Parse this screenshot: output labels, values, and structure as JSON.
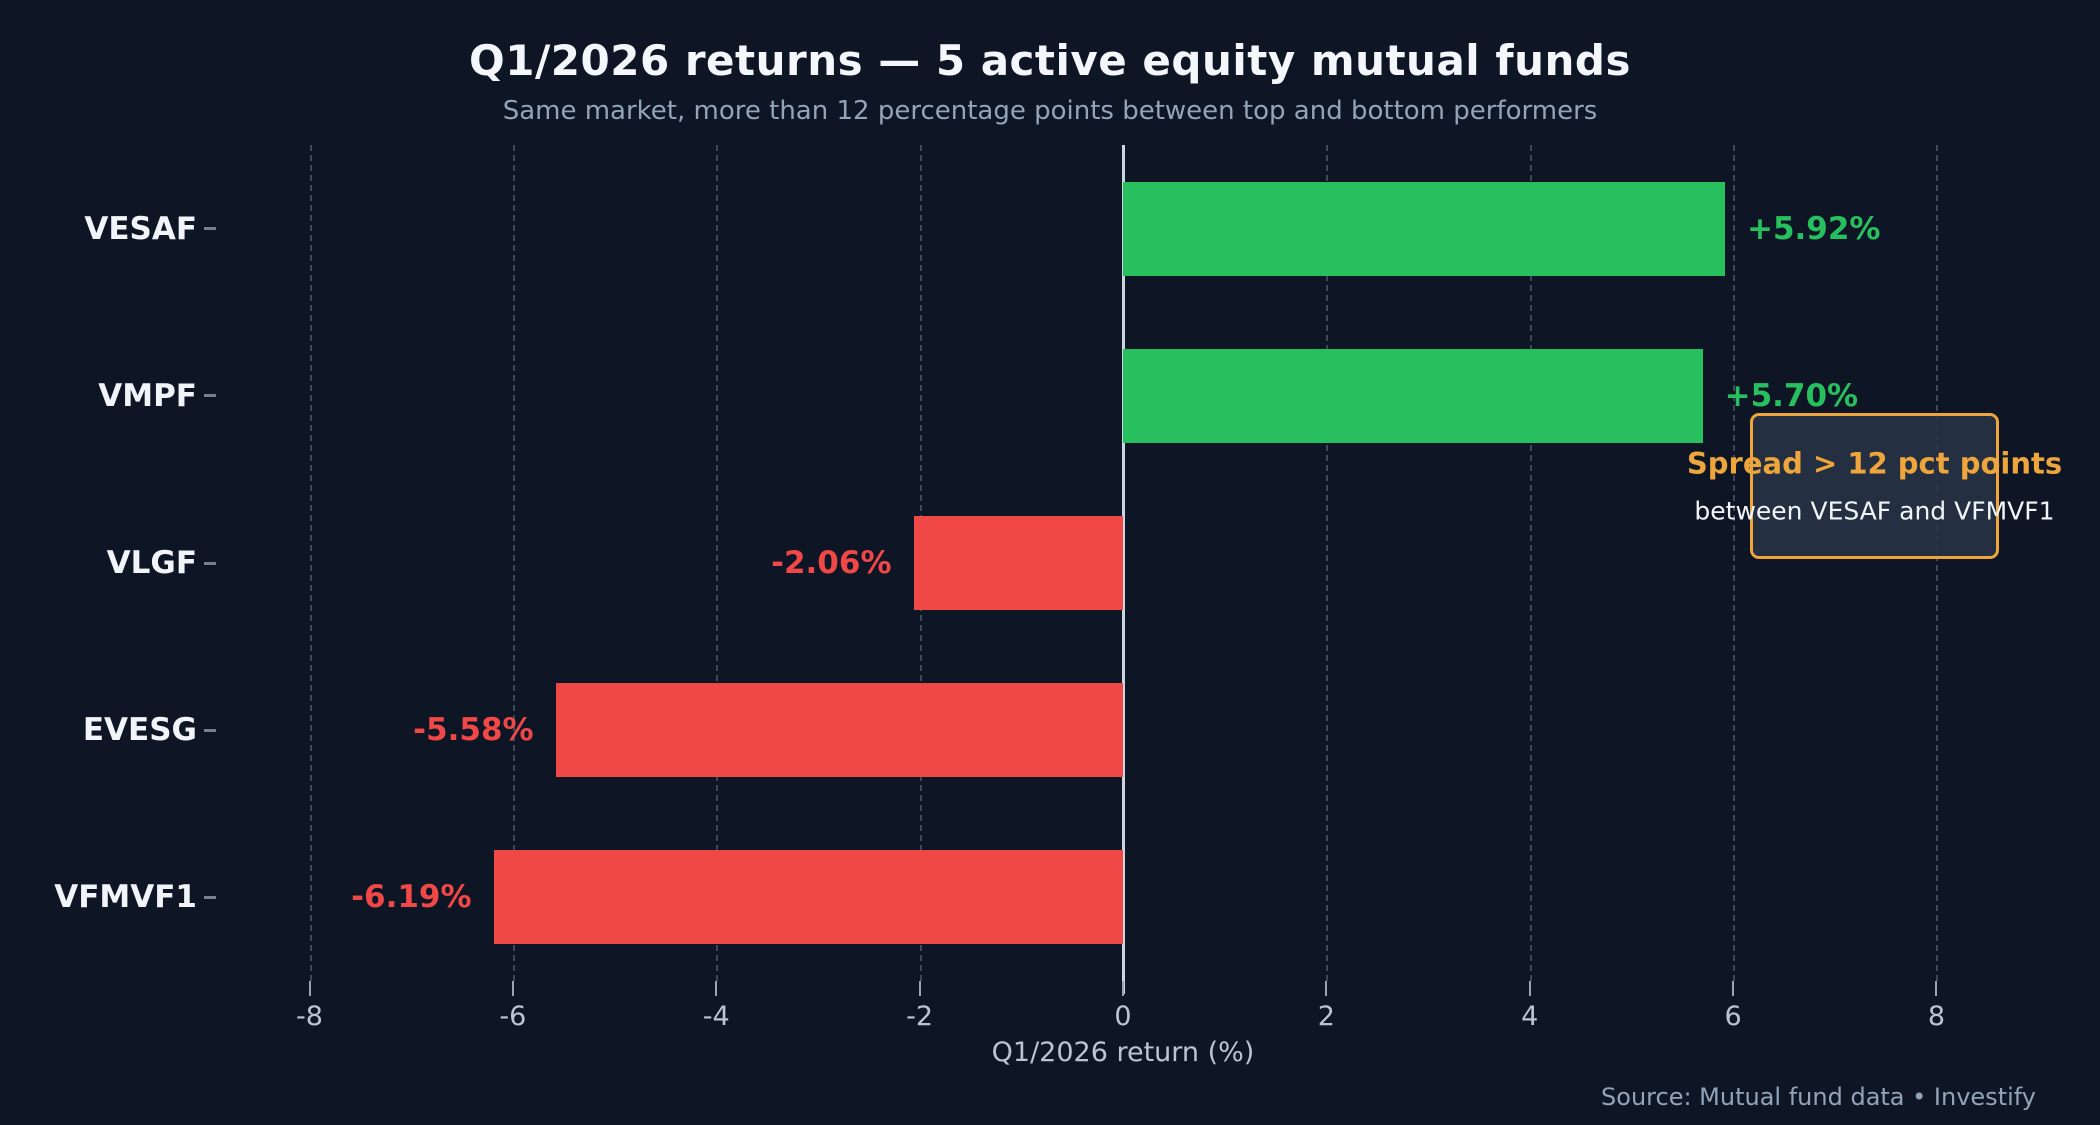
{
  "chart_data": {
    "type": "bar",
    "orientation": "horizontal",
    "title": "Q1/2026 returns — 5 active equity mutual funds",
    "subtitle": "Same market, more than 12 percentage points between top and bottom performers",
    "xlabel": "Q1/2026 return (%)",
    "categories": [
      "VESAF",
      "VMPF",
      "VLGF",
      "EVESG",
      "VFMVF1"
    ],
    "values": [
      5.92,
      5.7,
      -2.06,
      -5.58,
      -6.19
    ],
    "value_labels": [
      "+5.92%",
      "+5.70%",
      "-2.06%",
      "-5.58%",
      "-6.19%"
    ],
    "xlim": [
      -8.9,
      8.9
    ],
    "xticks": [
      -8,
      -6,
      -4,
      -2,
      0,
      2,
      4,
      6,
      8
    ],
    "grid": "dashed-vertical-gridlines, solid zero line",
    "legend": "none",
    "colors": {
      "background": "#0e1626",
      "positive_bar": "#28c05e",
      "negative_bar": "#f04747",
      "title": "#f3f6fa",
      "subtitle": "#93a3b8",
      "axis_text": "#b9c5d3",
      "zero_line": "#ccd6e0",
      "annotation_accent": "#eda53c"
    },
    "annotation": {
      "title": "Spread > 12 pct points",
      "text": "between VESAF and VFMVF1"
    },
    "source": "Source: Mutual fund data • Investify"
  }
}
